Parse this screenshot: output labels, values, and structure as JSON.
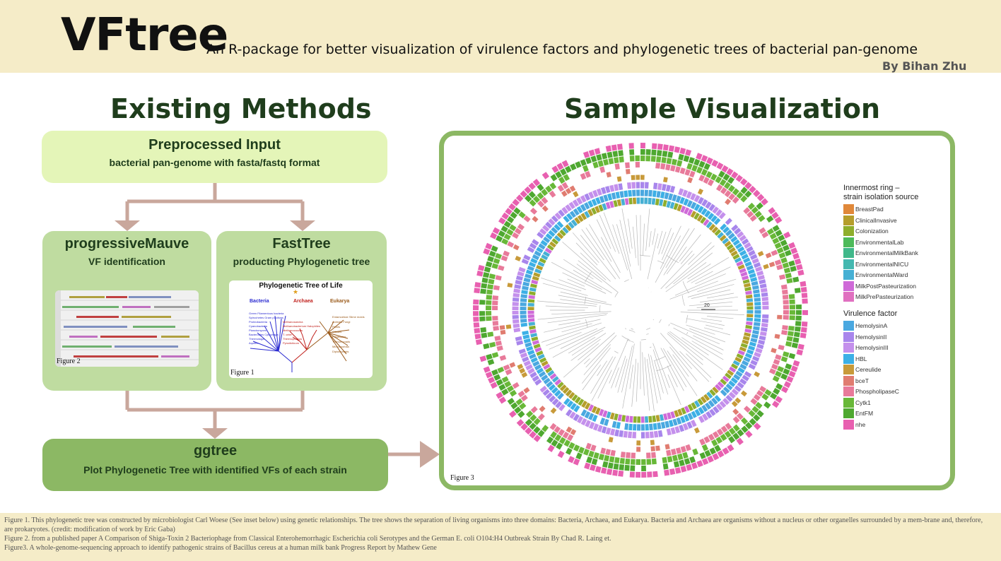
{
  "header": {
    "title": "VFtree",
    "subtitle": "An R-package for better visualization of virulence factors and phylogenetic trees of bacterial pan-genome",
    "byline": "By Bihan Zhu"
  },
  "existing_methods": {
    "heading": "Existing Methods",
    "input": {
      "title": "Preprocessed Input",
      "subtitle": "bacterial pan-genome with fasta/fastq format"
    },
    "mauve": {
      "title": "progressiveMauve",
      "subtitle": "VF identification",
      "figure_label": "Figure 2"
    },
    "fasttree": {
      "title": "FastTree",
      "subtitle": "producting Phylogenetic tree",
      "figure_label": "Figure 1"
    },
    "ggtree": {
      "title": "ggtree",
      "subtitle": "Plot Phylogenetic Tree with identified VFs of each strain"
    }
  },
  "figure1": {
    "title": "Phylogenetic Tree of Life",
    "domains": [
      "Bacteria",
      "Archaea",
      "Eukarya"
    ],
    "bacteria_leaves": [
      "Green Filamentous bacteria",
      "Spirochetes",
      "Gram positives",
      "Proteobacteria",
      "Cyanobacteria",
      "Planctomyces",
      "Bacteroides Cytophaga",
      "Thermotoga",
      "Aquifex"
    ],
    "archaea_leaves": [
      "Methanosarcina",
      "Methanobacterium",
      "Halophiles",
      "Methanococcus",
      "T. celer",
      "Thermoproteus",
      "Pyrodicticum"
    ],
    "eukarya_leaves": [
      "Entamoebae",
      "Slime molds",
      "Animals",
      "Fungi",
      "Plants",
      "Ciliates",
      "Flagellates",
      "Trichomonads",
      "Microsporidia",
      "Diplomonads"
    ],
    "colors": {
      "bacteria": "#2a2ad0",
      "archaea": "#c0201c",
      "eukarya": "#9a5a1a"
    }
  },
  "sample": {
    "heading": "Sample Visualization",
    "figure_label": "Figure 3",
    "scale_label": "20",
    "legend_isolation": {
      "title_line1": "Innermost ring –",
      "title_line2": "strain isolation source",
      "items": [
        {
          "label": "BreastPad",
          "color": "#e0883a"
        },
        {
          "label": "ClinicalInvasive",
          "color": "#b59e2c"
        },
        {
          "label": "Colonization",
          "color": "#8eae2c"
        },
        {
          "label": "EnvironmentalLab",
          "color": "#4dba5a"
        },
        {
          "label": "EnvironmentalMilkBank",
          "color": "#40b88a"
        },
        {
          "label": "EnvironmentalNICU",
          "color": "#44b8b0"
        },
        {
          "label": "EnvironmentalWard",
          "color": "#46b0d4"
        },
        {
          "label": "MilkPostPasteurization",
          "color": "#cf6ad8"
        },
        {
          "label": "MilkPrePasteurization",
          "color": "#e070c0"
        }
      ]
    },
    "legend_vf": {
      "title": "Virulence factor",
      "items": [
        {
          "label": "HemolysinA",
          "color": "#4aa8e0"
        },
        {
          "label": "HemolysinII",
          "color": "#a886ec"
        },
        {
          "label": "HemolysinIII",
          "color": "#c490ec"
        },
        {
          "label": "HBL",
          "color": "#3cb0e6"
        },
        {
          "label": "Cereulide",
          "color": "#c89a3a"
        },
        {
          "label": "bceT",
          "color": "#e07c70"
        },
        {
          "label": "PhospholipaseC",
          "color": "#e87a9a"
        },
        {
          "label": "Cytk1",
          "color": "#68b838"
        },
        {
          "label": "EntFM",
          "color": "#4ea830"
        },
        {
          "label": "nhe",
          "color": "#e860b0"
        }
      ]
    }
  },
  "footer": {
    "caption1": "Figure 1. This phylogenetic tree was constructed by microbiologist Carl Woese (See inset below) using genetic relationships. The tree shows the separation of living organisms into three domains: Bacteria, Archaea, and Eukarya. Bacteria and Archaea are organisms without a nucleus or other organelles surrounded by a mem-brane and, therefore, are prokaryotes. (credit: modification of work by Eric Gaba)",
    "caption2": "Figure 2. from a published paper A Comparison of Shiga-Toxin 2 Bacteriophage from Classical Enterohemorrhagic Escherichia coli Serotypes and the German E. coli O104:H4 Outbreak Strain By Chad R. Laing et.",
    "caption3": "Figure3. A whole-genome-sequencing approach to identify pathogenic strains of  Bacillus cereus at a human milk bank Progress Report by Mathew Gene"
  }
}
